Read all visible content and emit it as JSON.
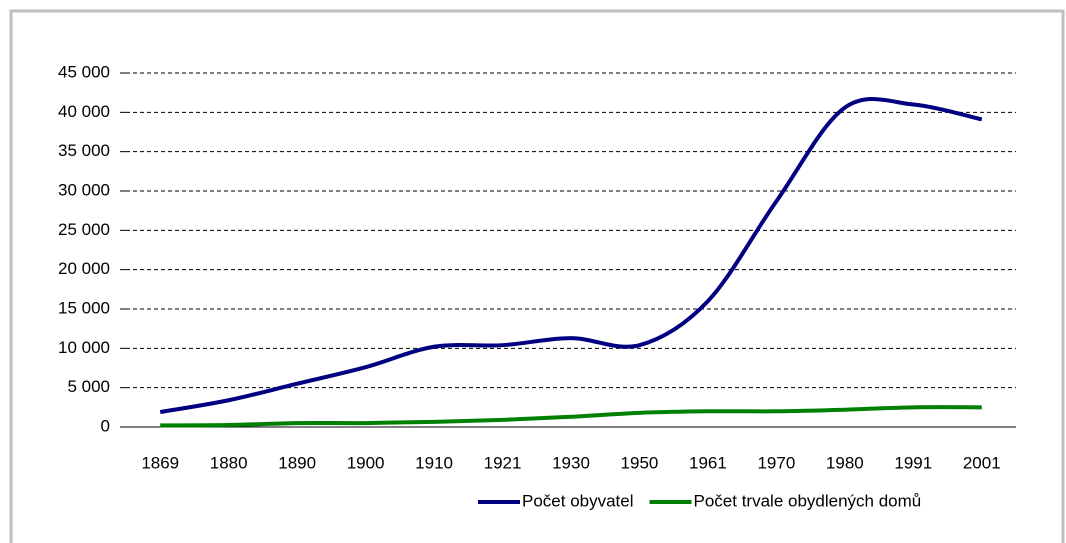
{
  "chart_data": {
    "type": "line",
    "categories": [
      "1869",
      "1880",
      "1890",
      "1900",
      "1910",
      "1921",
      "1930",
      "1950",
      "1961",
      "1970",
      "1980",
      "1991",
      "2001"
    ],
    "series": [
      {
        "name": "Počet obyvatel",
        "color": "#000080",
        "values": [
          1900,
          3400,
          5500,
          7600,
          10200,
          10400,
          11300,
          10400,
          16000,
          28700,
          40600,
          41000,
          39100
        ]
      },
      {
        "name": "Počet trvale obydlených domů",
        "color": "#008000",
        "values": [
          200,
          250,
          500,
          500,
          650,
          900,
          1300,
          1800,
          2000,
          2000,
          2200,
          2500,
          2500
        ]
      }
    ],
    "ylim": [
      0,
      45000
    ],
    "yticks": [
      0,
      {
        "value": 5000,
        "label": "5 000"
      },
      {
        "value": 10000,
        "label": "10 000"
      },
      {
        "value": 15000,
        "label": "15 000"
      },
      {
        "value": 20000,
        "label": "20 000"
      },
      {
        "value": 25000,
        "label": "25 000"
      },
      {
        "value": 30000,
        "label": "30 000"
      },
      {
        "value": 35000,
        "label": "35 000"
      },
      {
        "value": 40000,
        "label": "40 000"
      },
      {
        "value": 45000,
        "label": "45 000"
      }
    ],
    "grid": true,
    "legend": "bottom"
  }
}
